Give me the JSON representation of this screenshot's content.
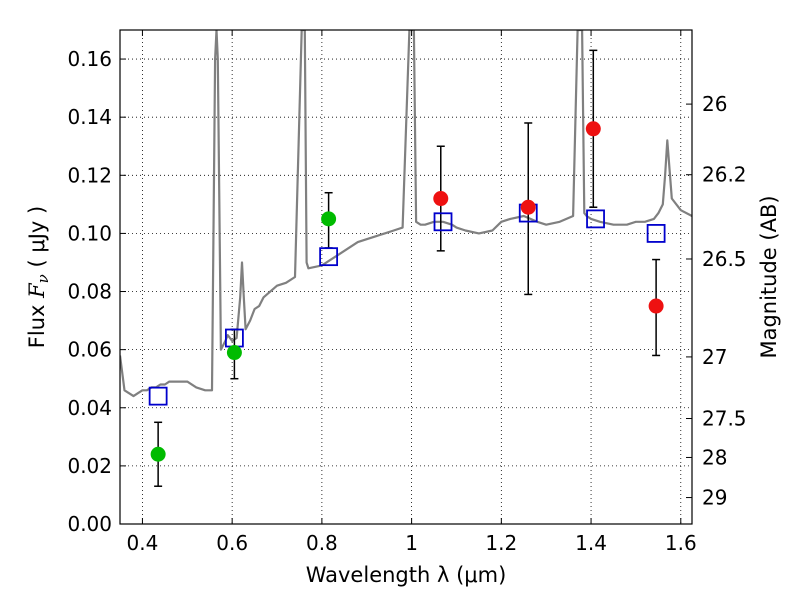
{
  "chart_data": {
    "type": "scatter",
    "title": "",
    "xlabel": "Wavelength  λ (μm)",
    "ylabel": "Flux  F_ν  ( μJy )",
    "y2label": "Magnitude (AB)",
    "xlim": [
      0.35,
      1.625
    ],
    "ylim": [
      0.0,
      0.17
    ],
    "grid": true,
    "x_ticks": [
      0.4,
      0.6,
      0.8,
      1.0,
      1.2,
      1.4,
      1.6
    ],
    "x_tick_labels": [
      "0.4",
      "0.6",
      "0.8",
      "1",
      "1.2",
      "1.4",
      "1.6"
    ],
    "y_ticks": [
      0.0,
      0.02,
      0.04,
      0.06,
      0.08,
      0.1,
      0.12,
      0.14,
      0.16
    ],
    "y_tick_labels": [
      "0.00",
      "0.02",
      "0.04",
      "0.06",
      "0.08",
      "0.10",
      "0.12",
      "0.14",
      "0.16"
    ],
    "mag_ticks": [
      {
        "label": "26",
        "flux": 0.1445
      },
      {
        "label": "26.2",
        "flux": 0.1202
      },
      {
        "label": "26.5",
        "flux": 0.0912
      },
      {
        "label": "27",
        "flux": 0.0575
      },
      {
        "label": "27.5",
        "flux": 0.0363
      },
      {
        "label": "28",
        "flux": 0.0229
      },
      {
        "label": "29",
        "flux": 0.0091
      }
    ],
    "colors": {
      "spectrum": "#808080",
      "model": "#0000cc",
      "optical": "#00bb00",
      "infrared": "#ee1111",
      "errorbar": "#000000"
    },
    "series": [
      {
        "kind": "spectrum",
        "x": [
          0.35,
          0.36,
          0.37,
          0.38,
          0.39,
          0.4,
          0.41,
          0.42,
          0.43,
          0.44,
          0.45,
          0.46,
          0.47,
          0.48,
          0.5,
          0.52,
          0.54,
          0.555,
          0.562,
          0.565,
          0.568,
          0.575,
          0.585,
          0.59,
          0.6,
          0.61,
          0.618,
          0.622,
          0.626,
          0.63,
          0.64,
          0.65,
          0.66,
          0.67,
          0.7,
          0.72,
          0.74,
          0.755,
          0.758,
          0.762,
          0.766,
          0.77,
          0.8,
          0.82,
          0.84,
          0.86,
          0.88,
          0.9,
          0.92,
          0.94,
          0.96,
          0.98,
          0.995,
          1.0,
          1.005,
          1.01,
          1.02,
          1.03,
          1.05,
          1.07,
          1.09,
          1.1,
          1.12,
          1.15,
          1.18,
          1.2,
          1.22,
          1.25,
          1.28,
          1.3,
          1.33,
          1.36,
          1.37,
          1.375,
          1.38,
          1.385,
          1.39,
          1.4,
          1.42,
          1.45,
          1.48,
          1.5,
          1.52,
          1.54,
          1.55,
          1.56,
          1.565,
          1.57,
          1.58,
          1.6,
          1.625
        ],
        "y": [
          0.058,
          0.046,
          0.045,
          0.044,
          0.045,
          0.046,
          0.046,
          0.047,
          0.047,
          0.048,
          0.048,
          0.049,
          0.049,
          0.049,
          0.049,
          0.047,
          0.046,
          0.046,
          0.16,
          0.17,
          0.16,
          0.06,
          0.063,
          0.065,
          0.063,
          0.064,
          0.078,
          0.09,
          0.078,
          0.067,
          0.07,
          0.074,
          0.075,
          0.078,
          0.082,
          0.083,
          0.085,
          0.17,
          0.17,
          0.17,
          0.09,
          0.088,
          0.089,
          0.091,
          0.093,
          0.095,
          0.097,
          0.098,
          0.099,
          0.1,
          0.101,
          0.102,
          0.17,
          0.17,
          0.17,
          0.104,
          0.103,
          0.103,
          0.104,
          0.104,
          0.103,
          0.102,
          0.101,
          0.1,
          0.101,
          0.104,
          0.105,
          0.106,
          0.104,
          0.103,
          0.104,
          0.106,
          0.17,
          0.17,
          0.17,
          0.107,
          0.106,
          0.105,
          0.104,
          0.103,
          0.103,
          0.104,
          0.104,
          0.105,
          0.107,
          0.11,
          0.12,
          0.132,
          0.112,
          0.108,
          0.106
        ]
      },
      {
        "kind": "model",
        "marker": "open-square",
        "x": [
          0.435,
          0.605,
          0.815,
          1.07,
          1.26,
          1.41,
          1.545
        ],
        "y": [
          0.044,
          0.064,
          0.092,
          0.104,
          0.107,
          0.105,
          0.1
        ]
      },
      {
        "kind": "optical",
        "marker": "filled-circle",
        "x": [
          0.435,
          0.605,
          0.815
        ],
        "y": [
          0.024,
          0.059,
          0.105
        ],
        "err_low": [
          0.013,
          0.05,
          0.095
        ],
        "err_high": [
          0.035,
          0.067,
          0.114
        ]
      },
      {
        "kind": "infrared",
        "marker": "filled-circle",
        "x": [
          1.065,
          1.26,
          1.405,
          1.545
        ],
        "y": [
          0.112,
          0.109,
          0.136,
          0.075
        ],
        "err_low": [
          0.094,
          0.079,
          0.109,
          0.058
        ],
        "err_high": [
          0.13,
          0.138,
          0.163,
          0.091
        ]
      }
    ]
  }
}
